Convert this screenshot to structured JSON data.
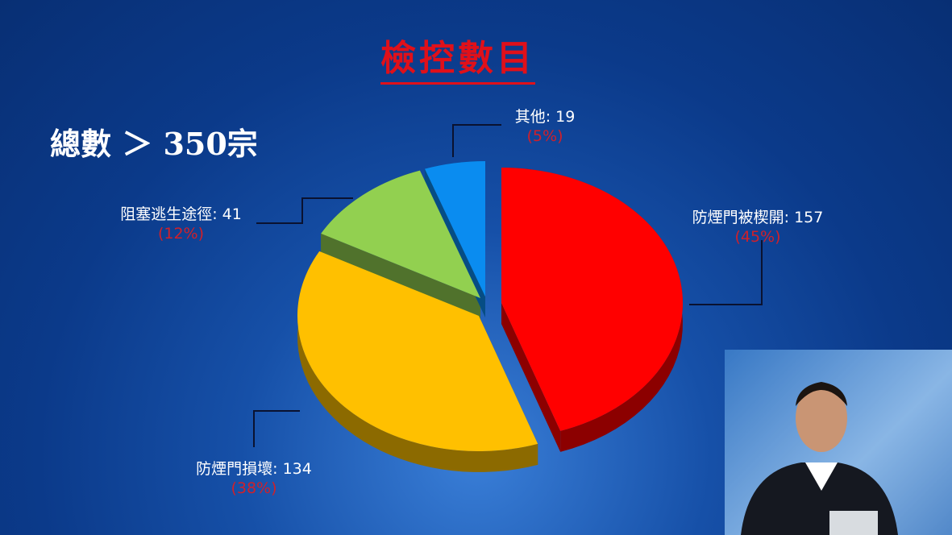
{
  "slide": {
    "title": "檢控數目",
    "total_label": "總數 ＞ 350宗"
  },
  "chart_data": {
    "type": "pie",
    "title": "",
    "total": 350,
    "categories": [
      "防煙門被楔開",
      "防煙門損壞",
      "阻塞逃生途徑",
      "其他"
    ],
    "values": [
      157,
      134,
      41,
      19
    ],
    "percent_labels": [
      "(45%)",
      "(38%)",
      "(12%)",
      "(5%)"
    ],
    "value_labels": [
      "防煙門被楔開: 157",
      "防煙門損壞: 134",
      "阻塞逃生途徑: 41",
      "其他: 19"
    ],
    "colors": [
      "#ff0000",
      "#ffc000",
      "#92d050",
      "#0a8cf0"
    ],
    "style": "3d-exploded"
  }
}
